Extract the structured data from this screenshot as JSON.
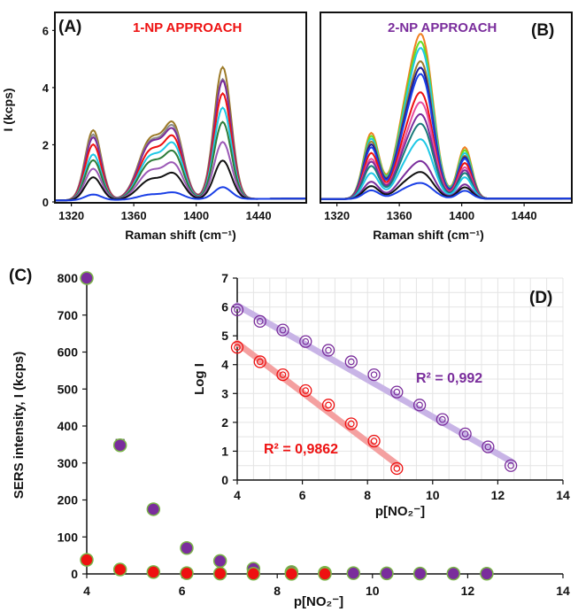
{
  "colors": {
    "red": "#ee1111",
    "purple": "#7a2d9c",
    "inset_red_line": "#f4a0a0",
    "inset_purple_line": "#c8b4e6",
    "marker_edge": "#7ab648",
    "orange": "#f08020",
    "brown": "#9c7a28",
    "gray": "#8a8a8a",
    "green": "#2e7d3a",
    "cyan": "#1ec8e6",
    "dark": "#111111",
    "blue": "#1a3fe6",
    "light_green": "#66dd22",
    "teal": "#1a7a7a",
    "pink": "#e64da0",
    "navy": "#1a1a99"
  },
  "chart_data": [
    {
      "panel": "(A)",
      "type": "line",
      "title": "1-NP APPROACH",
      "xlabel": "Raman shift (cm⁻¹)",
      "ylabel": "I (kcps)",
      "xlim": [
        1310,
        1470
      ],
      "ylim": [
        0,
        6.6
      ],
      "xticks": [
        1320,
        1360,
        1400,
        1440
      ],
      "yticks": [
        0,
        2,
        4,
        6
      ],
      "peaks": [
        {
          "center": 1334,
          "width": 5.2
        },
        {
          "center": 1371,
          "width": 8
        },
        {
          "center": 1386,
          "width": 6
        },
        {
          "center": 1417,
          "width": 5.5
        }
      ],
      "baseline_start": 0.05,
      "baseline_end": 0.12,
      "series": [
        {
          "color": "#9c7a28",
          "peak_heights": [
            2.45,
            2.1,
            2.3,
            4.62
          ]
        },
        {
          "color": "#8a8a8a",
          "peak_heights": [
            2.3,
            2.0,
            2.2,
            4.2
          ]
        },
        {
          "color": "#7a2d9c",
          "peak_heights": [
            2.2,
            1.95,
            2.1,
            4.15
          ]
        },
        {
          "color": "#ee1111",
          "peak_heights": [
            1.95,
            1.7,
            1.9,
            3.7
          ]
        },
        {
          "color": "#1ec8e6",
          "peak_heights": [
            1.6,
            1.5,
            1.7,
            3.2
          ]
        },
        {
          "color": "#2e7d3a",
          "peak_heights": [
            1.4,
            1.3,
            1.45,
            2.7
          ]
        },
        {
          "color": "#9b59b6",
          "peak_heights": [
            1.1,
            1.0,
            1.1,
            2.0
          ]
        },
        {
          "color": "#111111",
          "peak_heights": [
            0.8,
            0.7,
            0.8,
            1.35
          ]
        },
        {
          "color": "#1a3fe6",
          "peak_heights": [
            0.2,
            0.18,
            0.22,
            0.42
          ]
        }
      ]
    },
    {
      "panel": "(B)",
      "type": "line",
      "title": "2-NP APPROACH",
      "xlabel": "Raman shift (cm⁻¹)",
      "xlim": [
        1310,
        1470
      ],
      "ylim": [
        0,
        6.6
      ],
      "xticks": [
        1320,
        1360,
        1400,
        1440
      ],
      "peaks": [
        {
          "center": 1342,
          "width": 5
        },
        {
          "center": 1363,
          "width": 6.5
        },
        {
          "center": 1375,
          "width": 7
        },
        {
          "center": 1402,
          "width": 4.5
        }
      ],
      "baseline_start": 0.1,
      "baseline_end": 0.12,
      "series": [
        {
          "color": "#f08020",
          "peak_heights": [
            2.3,
            2.2,
            5.3,
            1.8
          ]
        },
        {
          "color": "#66dd22",
          "peak_heights": [
            2.2,
            2.1,
            5.05,
            1.7
          ]
        },
        {
          "color": "#1ec8e6",
          "peak_heights": [
            2.1,
            2.0,
            4.85,
            1.6
          ]
        },
        {
          "color": "#9c7a28",
          "peak_heights": [
            2.0,
            1.9,
            4.4,
            1.5
          ]
        },
        {
          "color": "#1a1a99",
          "peak_heights": [
            1.9,
            1.8,
            4.2,
            1.45
          ]
        },
        {
          "color": "#1a3fe6",
          "peak_heights": [
            1.8,
            1.7,
            4.0,
            1.4
          ]
        },
        {
          "color": "#ee1111",
          "peak_heights": [
            1.6,
            1.5,
            3.4,
            1.25
          ]
        },
        {
          "color": "#e64da0",
          "peak_heights": [
            1.4,
            1.3,
            3.1,
            1.1
          ]
        },
        {
          "color": "#7a2d9c",
          "peak_heights": [
            1.3,
            1.2,
            2.7,
            1.0
          ]
        },
        {
          "color": "#1a7a7a",
          "peak_heights": [
            1.15,
            1.05,
            2.4,
            0.9
          ]
        },
        {
          "color": "#1ec8e6",
          "peak_heights": [
            0.9,
            0.85,
            1.9,
            0.75
          ]
        },
        {
          "color": "#7a2d9c",
          "peak_heights": [
            0.6,
            0.55,
            1.2,
            0.5
          ]
        },
        {
          "color": "#111111",
          "peak_heights": [
            0.45,
            0.4,
            0.85,
            0.4
          ]
        },
        {
          "color": "#1a3fe6",
          "peak_heights": [
            0.3,
            0.25,
            0.5,
            0.28
          ]
        }
      ]
    },
    {
      "panel": "(C)",
      "type": "scatter",
      "xlabel": "p[NO₂⁻]",
      "ylabel": "SERS intensity, I (kcps)",
      "xlim": [
        4,
        14
      ],
      "ylim": [
        0,
        800
      ],
      "xticks": [
        4,
        6,
        8,
        10,
        12,
        14
      ],
      "yticks": [
        0,
        100,
        200,
        300,
        400,
        500,
        600,
        700,
        800
      ],
      "series": [
        {
          "color": "#7a2d9c",
          "x": [
            4.0,
            4.7,
            5.4,
            6.1,
            6.8,
            7.5,
            8.3,
            9.0,
            9.6,
            10.3,
            11.0,
            11.7,
            12.4
          ],
          "y": [
            800,
            348,
            175,
            70,
            35,
            14,
            5,
            3,
            2,
            1.5,
            1,
            0.8,
            0.5
          ],
          "err": [
            0,
            15,
            0,
            0,
            0,
            0,
            0,
            0,
            0,
            0,
            0,
            0,
            0
          ]
        },
        {
          "color": "#ee1111",
          "x": [
            4.0,
            4.7,
            5.4,
            6.1,
            6.8,
            7.5,
            8.3,
            9.0
          ],
          "y": [
            38,
            12,
            5,
            2,
            1,
            0.5,
            0.3,
            0.2
          ]
        }
      ]
    },
    {
      "panel": "(D)",
      "type": "scatter",
      "xlabel": "p[NO₂⁻]",
      "ylabel": "Log I",
      "xlim": [
        4,
        14
      ],
      "ylim": [
        0,
        7
      ],
      "xticks": [
        4,
        6,
        8,
        10,
        12,
        14
      ],
      "yticks": [
        0,
        1,
        2,
        3,
        4,
        5,
        6,
        7
      ],
      "series": [
        {
          "color": "#7a2d9c",
          "annotation": "R² = 0,992",
          "x": [
            4.0,
            4.7,
            5.4,
            6.1,
            6.8,
            7.5,
            8.2,
            8.9,
            9.6,
            10.3,
            11.0,
            11.7,
            12.4
          ],
          "y": [
            5.9,
            5.5,
            5.2,
            4.8,
            4.5,
            4.1,
            3.65,
            3.05,
            2.6,
            2.1,
            1.6,
            1.15,
            0.5
          ],
          "fit": [
            [
              4.0,
              6.05
            ],
            [
              12.4,
              0.65
            ]
          ]
        },
        {
          "color": "#ee1111",
          "annotation": "R² = 0,9862",
          "x": [
            4.0,
            4.7,
            5.4,
            6.1,
            6.8,
            7.5,
            8.2,
            8.9
          ],
          "y": [
            4.6,
            4.1,
            3.65,
            3.1,
            2.6,
            1.95,
            1.35,
            0.4
          ],
          "fit": [
            [
              4.0,
              4.75
            ],
            [
              8.9,
              0.55
            ]
          ]
        }
      ]
    }
  ]
}
